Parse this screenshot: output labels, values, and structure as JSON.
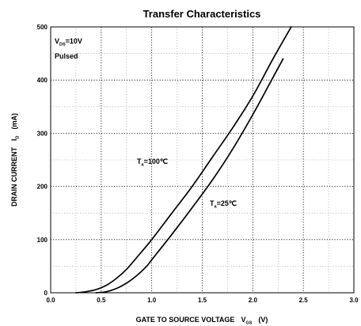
{
  "chart_data": {
    "type": "line",
    "title": "Transfer Characteristics",
    "xlabel": "GATE TO SOURCE VOLTAGE",
    "xlabel_symbol": "V",
    "xlabel_subscript": "GS",
    "xlabel_unit": "(V)",
    "ylabel": "DRAIN CURRENT",
    "ylabel_symbol": "I",
    "ylabel_subscript": "D",
    "ylabel_unit": "(mA)",
    "xlim": [
      0,
      3.0
    ],
    "ylim": [
      0,
      500
    ],
    "x_ticks": [
      "0.0",
      "0.5",
      "1.0",
      "1.5",
      "2.0",
      "2.5",
      "3.0"
    ],
    "y_ticks": [
      "0",
      "100",
      "200",
      "300",
      "400",
      "500"
    ],
    "grid": true,
    "conditions": {
      "line1_symbol": "V",
      "line1_subscript": "DS",
      "line1_value": "=10V",
      "line2": "Pulsed"
    },
    "series": [
      {
        "name_symbol": "T",
        "name_subscript": "a",
        "name_value": "=100℃",
        "x": [
          0.25,
          0.35,
          0.45,
          0.55,
          0.65,
          0.75,
          0.85,
          1.0,
          1.2,
          1.4,
          1.6,
          1.8,
          2.0,
          2.2,
          2.38
        ],
        "y": [
          0,
          2,
          6,
          14,
          27,
          44,
          66,
          100,
          150,
          200,
          255,
          310,
          370,
          440,
          500
        ]
      },
      {
        "name_symbol": "T",
        "name_subscript": "a",
        "name_value": "=25℃",
        "x": [
          0.45,
          0.55,
          0.65,
          0.75,
          0.85,
          0.95,
          1.0,
          1.2,
          1.4,
          1.6,
          1.8,
          2.0,
          2.2,
          2.3
        ],
        "y": [
          0,
          2,
          8,
          18,
          32,
          50,
          62,
          110,
          160,
          212,
          270,
          335,
          405,
          440
        ]
      }
    ]
  }
}
